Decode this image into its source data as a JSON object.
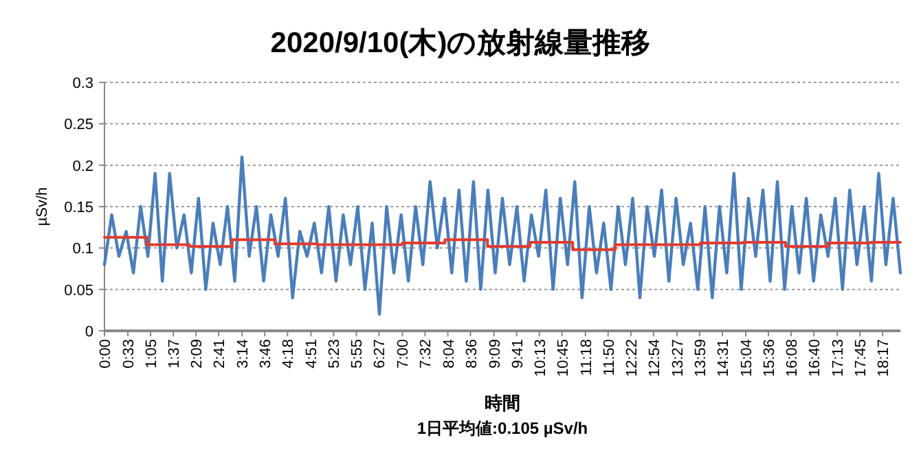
{
  "chart_data": {
    "type": "line",
    "title": "2020/9/10(木)の放射線量推移",
    "xlabel": "時間",
    "ylabel": "µSv/h",
    "annotations": [
      "1日平均値:0.105 µSv/h"
    ],
    "xlim": [
      0,
      18.7
    ],
    "ylim": [
      0,
      0.3
    ],
    "yticks": [
      0,
      0.05,
      0.1,
      0.15,
      0.2,
      0.25,
      0.3
    ],
    "xticks": [
      {
        "value": 0,
        "label": "0:00"
      },
      {
        "value": 0.55,
        "label": "0:33"
      },
      {
        "value": 1.083,
        "label": "1:05"
      },
      {
        "value": 1.617,
        "label": "1:37"
      },
      {
        "value": 2.15,
        "label": "2:09"
      },
      {
        "value": 2.683,
        "label": "2:41"
      },
      {
        "value": 3.233,
        "label": "3:14"
      },
      {
        "value": 3.767,
        "label": "3:46"
      },
      {
        "value": 4.3,
        "label": "4:18"
      },
      {
        "value": 4.85,
        "label": "4:51"
      },
      {
        "value": 5.383,
        "label": "5:23"
      },
      {
        "value": 5.917,
        "label": "5:55"
      },
      {
        "value": 6.45,
        "label": "6:27"
      },
      {
        "value": 7.0,
        "label": "7:00"
      },
      {
        "value": 7.533,
        "label": "7:32"
      },
      {
        "value": 8.067,
        "label": "8:04"
      },
      {
        "value": 8.6,
        "label": "8:36"
      },
      {
        "value": 9.15,
        "label": "9:09"
      },
      {
        "value": 9.683,
        "label": "9:41"
      },
      {
        "value": 10.217,
        "label": "10:13"
      },
      {
        "value": 10.75,
        "label": "10:45"
      },
      {
        "value": 11.3,
        "label": "11:18"
      },
      {
        "value": 11.833,
        "label": "11:50"
      },
      {
        "value": 12.367,
        "label": "12:22"
      },
      {
        "value": 12.9,
        "label": "12:54"
      },
      {
        "value": 13.45,
        "label": "13:27"
      },
      {
        "value": 13.983,
        "label": "13:59"
      },
      {
        "value": 14.517,
        "label": "14:31"
      },
      {
        "value": 15.067,
        "label": "15:04"
      },
      {
        "value": 15.6,
        "label": "15:36"
      },
      {
        "value": 16.133,
        "label": "16:08"
      },
      {
        "value": 16.667,
        "label": "16:40"
      },
      {
        "value": 17.217,
        "label": "17:13"
      },
      {
        "value": 17.75,
        "label": "17:45"
      },
      {
        "value": 18.283,
        "label": "18:17"
      }
    ],
    "grid": "y",
    "series": [
      {
        "color": "#4a7ebb",
        "x": [
          0,
          0.17,
          0.34,
          0.51,
          0.68,
          0.85,
          1.02,
          1.19,
          1.36,
          1.53,
          1.7,
          1.87,
          2.04,
          2.21,
          2.38,
          2.55,
          2.72,
          2.89,
          3.06,
          3.23,
          3.4,
          3.57,
          3.74,
          3.91,
          4.08,
          4.25,
          4.42,
          4.59,
          4.76,
          4.93,
          5.1,
          5.27,
          5.44,
          5.61,
          5.78,
          5.95,
          6.12,
          6.29,
          6.46,
          6.63,
          6.8,
          6.97,
          7.14,
          7.31,
          7.48,
          7.65,
          7.82,
          7.99,
          8.16,
          8.33,
          8.5,
          8.67,
          8.84,
          9.01,
          9.18,
          9.35,
          9.52,
          9.69,
          9.86,
          10.03,
          10.2,
          10.37,
          10.54,
          10.71,
          10.88,
          11.05,
          11.22,
          11.39,
          11.56,
          11.73,
          11.9,
          12.07,
          12.24,
          12.41,
          12.58,
          12.75,
          12.92,
          13.09,
          13.26,
          13.43,
          13.6,
          13.77,
          13.94,
          14.11,
          14.28,
          14.45,
          14.62,
          14.79,
          14.96,
          15.13,
          15.3,
          15.47,
          15.64,
          15.81,
          15.98,
          16.15,
          16.32,
          16.49,
          16.66,
          16.83,
          17.0,
          17.17,
          17.34,
          17.51,
          17.68,
          17.85,
          18.02,
          18.19,
          18.36,
          18.53,
          18.7
        ],
        "values": [
          0.08,
          0.14,
          0.09,
          0.12,
          0.07,
          0.15,
          0.09,
          0.19,
          0.06,
          0.19,
          0.1,
          0.14,
          0.07,
          0.16,
          0.05,
          0.13,
          0.08,
          0.15,
          0.06,
          0.21,
          0.09,
          0.15,
          0.06,
          0.14,
          0.09,
          0.16,
          0.04,
          0.12,
          0.09,
          0.13,
          0.07,
          0.15,
          0.06,
          0.14,
          0.08,
          0.15,
          0.05,
          0.13,
          0.02,
          0.15,
          0.07,
          0.14,
          0.06,
          0.15,
          0.08,
          0.18,
          0.1,
          0.16,
          0.07,
          0.17,
          0.06,
          0.18,
          0.05,
          0.17,
          0.07,
          0.16,
          0.08,
          0.15,
          0.06,
          0.14,
          0.09,
          0.17,
          0.05,
          0.16,
          0.08,
          0.18,
          0.04,
          0.15,
          0.07,
          0.13,
          0.05,
          0.15,
          0.08,
          0.16,
          0.04,
          0.15,
          0.09,
          0.17,
          0.06,
          0.16,
          0.08,
          0.13,
          0.05,
          0.15,
          0.04,
          0.15,
          0.07,
          0.19,
          0.05,
          0.16,
          0.09,
          0.17,
          0.06,
          0.18,
          0.05,
          0.15,
          0.07,
          0.16,
          0.06,
          0.14,
          0.09,
          0.16,
          0.05,
          0.17,
          0.08,
          0.15,
          0.06,
          0.19,
          0.08,
          0.16,
          0.07
        ]
      },
      {
        "type": "step",
        "color": "#e03c31",
        "x": [
          0,
          1,
          2,
          3,
          4,
          5,
          6,
          7,
          8,
          9,
          10,
          11,
          12,
          13,
          14,
          15,
          16,
          17,
          18,
          18.7
        ],
        "values": [
          0.113,
          0.104,
          0.102,
          0.11,
          0.105,
          0.104,
          0.104,
          0.106,
          0.11,
          0.102,
          0.107,
          0.098,
          0.104,
          0.104,
          0.106,
          0.107,
          0.102,
          0.106,
          0.107,
          0.107
        ]
      }
    ]
  }
}
